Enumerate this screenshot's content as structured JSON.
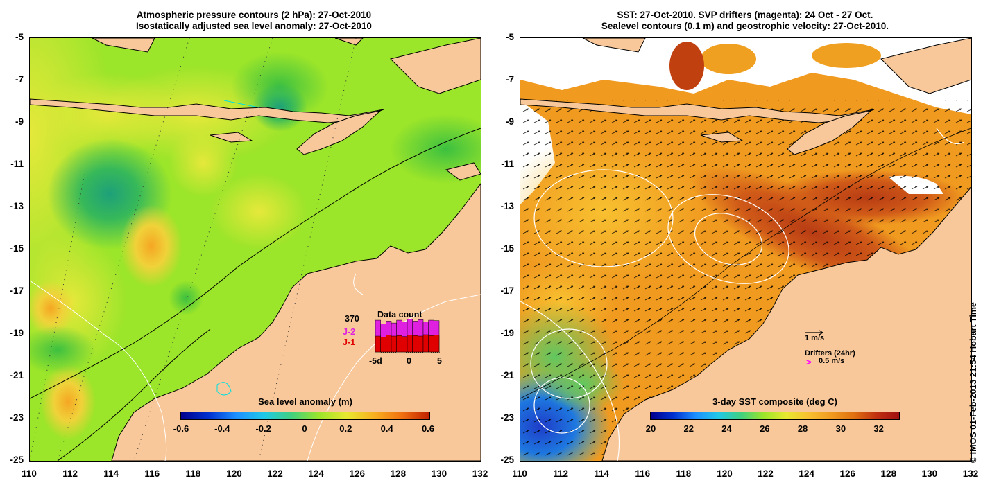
{
  "left_panel": {
    "title_line1": "Atmospheric pressure contours (2 hPa): 27-Oct-2010",
    "title_line2": "Isostatically adjusted sea level anomaly: 27-Oct-2010",
    "colorbar_label": "Sea level anomaly (m)",
    "colorbar_ticks": [
      "-0.6",
      "-0.4",
      "-0.2",
      "0",
      "0.2",
      "0.4",
      "0.6"
    ],
    "colorbar_range": [
      -0.6,
      0.6
    ],
    "data_count": {
      "title": "Data count",
      "max_value": "370",
      "series": [
        {
          "name": "J-2",
          "color": "#e020e0",
          "values": [
            340,
            300,
            330,
            310,
            340,
            320,
            350,
            330,
            345,
            320,
            340,
            335
          ]
        },
        {
          "name": "J-1",
          "color": "#e00000",
          "values": [
            170,
            160,
            180,
            170,
            175,
            165,
            180,
            175,
            170,
            185,
            175,
            180
          ]
        }
      ],
      "x_ticks": [
        "-5d",
        "0",
        "5"
      ]
    }
  },
  "right_panel": {
    "title_line1": "SST: 27-Oct-2010. SVP drifters (magenta): 24 Oct - 27 Oct.",
    "title_line2": "Sealevel contours (0.1 m) and geostrophic velocity: 27-Oct-2010.",
    "colorbar_label": "3-day SST composite (deg C)",
    "colorbar_ticks": [
      "20",
      "22",
      "24",
      "26",
      "28",
      "30",
      "32"
    ],
    "colorbar_range": [
      20,
      33
    ],
    "velocity_scale_label": "1 m/s",
    "drifters_label": "Drifters (24hr)",
    "drifter_speed_label": "0.5 m/s",
    "drifter_symbol": ">"
  },
  "y_axis_ticks": [
    "-5",
    "-7",
    "-9",
    "-11",
    "-13",
    "-15",
    "-17",
    "-19",
    "-21",
    "-23",
    "-25"
  ],
  "x_axis_ticks": [
    "110",
    "112",
    "114",
    "116",
    "118",
    "120",
    "122",
    "124",
    "126",
    "128",
    "130",
    "132"
  ],
  "credit": "© IMOS 01-Feb-2013 21:54 Hobart Time",
  "colors": {
    "land": "#f8c89a",
    "sla_base": "#9be52a",
    "sst_base": "#f09a20",
    "drifter": "#ff00ff"
  }
}
